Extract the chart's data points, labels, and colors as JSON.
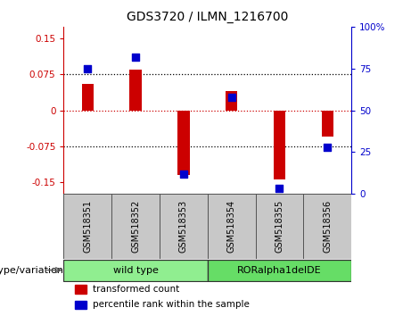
{
  "title": "GDS3720 / ILMN_1216700",
  "samples": [
    "GSM518351",
    "GSM518352",
    "GSM518353",
    "GSM518354",
    "GSM518355",
    "GSM518356"
  ],
  "red_values": [
    0.055,
    0.085,
    -0.135,
    0.04,
    -0.145,
    -0.055
  ],
  "blue_values_pct": [
    75,
    82,
    12,
    58,
    3,
    28
  ],
  "ylim_left": [
    -0.175,
    0.175
  ],
  "ylim_right": [
    0,
    100
  ],
  "yticks_left": [
    -0.15,
    -0.075,
    0,
    0.075,
    0.15
  ],
  "ytick_left_labels": [
    "-0.15",
    "-0.075",
    "0",
    "0.075",
    "0.15"
  ],
  "yticks_right": [
    0,
    25,
    50,
    75,
    100
  ],
  "ytick_right_labels": [
    "0",
    "25",
    "50",
    "75",
    "100%"
  ],
  "hlines": [
    -0.075,
    0,
    0.075
  ],
  "hline_colors": [
    "black",
    "#CC0000",
    "black"
  ],
  "groups": [
    {
      "label": "wild type",
      "start": 0,
      "end": 2,
      "color": "#90EE90"
    },
    {
      "label": "RORalpha1delDE",
      "start": 3,
      "end": 5,
      "color": "#66DD66"
    }
  ],
  "group_label": "genotype/variation",
  "bar_color": "#CC0000",
  "dot_color": "#0000CC",
  "bar_width": 0.25,
  "dot_size": 35,
  "legend_labels": [
    "transformed count",
    "percentile rank within the sample"
  ],
  "left_axis_color": "#CC0000",
  "right_axis_color": "#0000CC",
  "tick_label_fontsize": 7.5,
  "title_fontsize": 10,
  "sample_bg": "#C8C8C8",
  "geno_border_color": "#333333"
}
